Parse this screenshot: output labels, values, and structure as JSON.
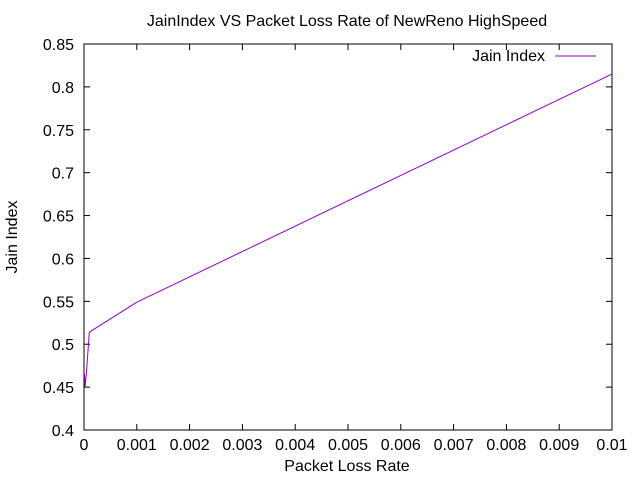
{
  "chart_data": {
    "type": "line",
    "title": "JainIndex VS Packet Loss Rate of NewReno  HighSpeed",
    "xlabel": "Packet Loss Rate",
    "ylabel": "Jain Index",
    "xlim": [
      0,
      0.01
    ],
    "ylim": [
      0.4,
      0.85
    ],
    "xticks": [
      0,
      0.001,
      0.002,
      0.003,
      0.004,
      0.005,
      0.006,
      0.007,
      0.008,
      0.009,
      0.01
    ],
    "xtick_labels": [
      "0",
      "0.001",
      "0.002",
      "0.003",
      "0.004",
      "0.005",
      "0.006",
      "0.007",
      "0.008",
      "0.009",
      "0.01"
    ],
    "yticks": [
      0.4,
      0.45,
      0.5,
      0.55,
      0.6,
      0.65,
      0.7,
      0.75,
      0.8,
      0.85
    ],
    "ytick_labels": [
      "0.4",
      "0.45",
      "0.5",
      "0.55",
      "0.6",
      "0.65",
      "0.7",
      "0.75",
      "0.8",
      "0.85"
    ],
    "grid": false,
    "legend_position": "top-right",
    "series": [
      {
        "name": "Jain Index",
        "color": "#9400d3",
        "x": [
          1e-05,
          2e-05,
          5e-05,
          0.0001,
          0.001,
          0.01
        ],
        "y": [
          0.465,
          0.45,
          0.47,
          0.514,
          0.549,
          0.815
        ]
      }
    ]
  }
}
